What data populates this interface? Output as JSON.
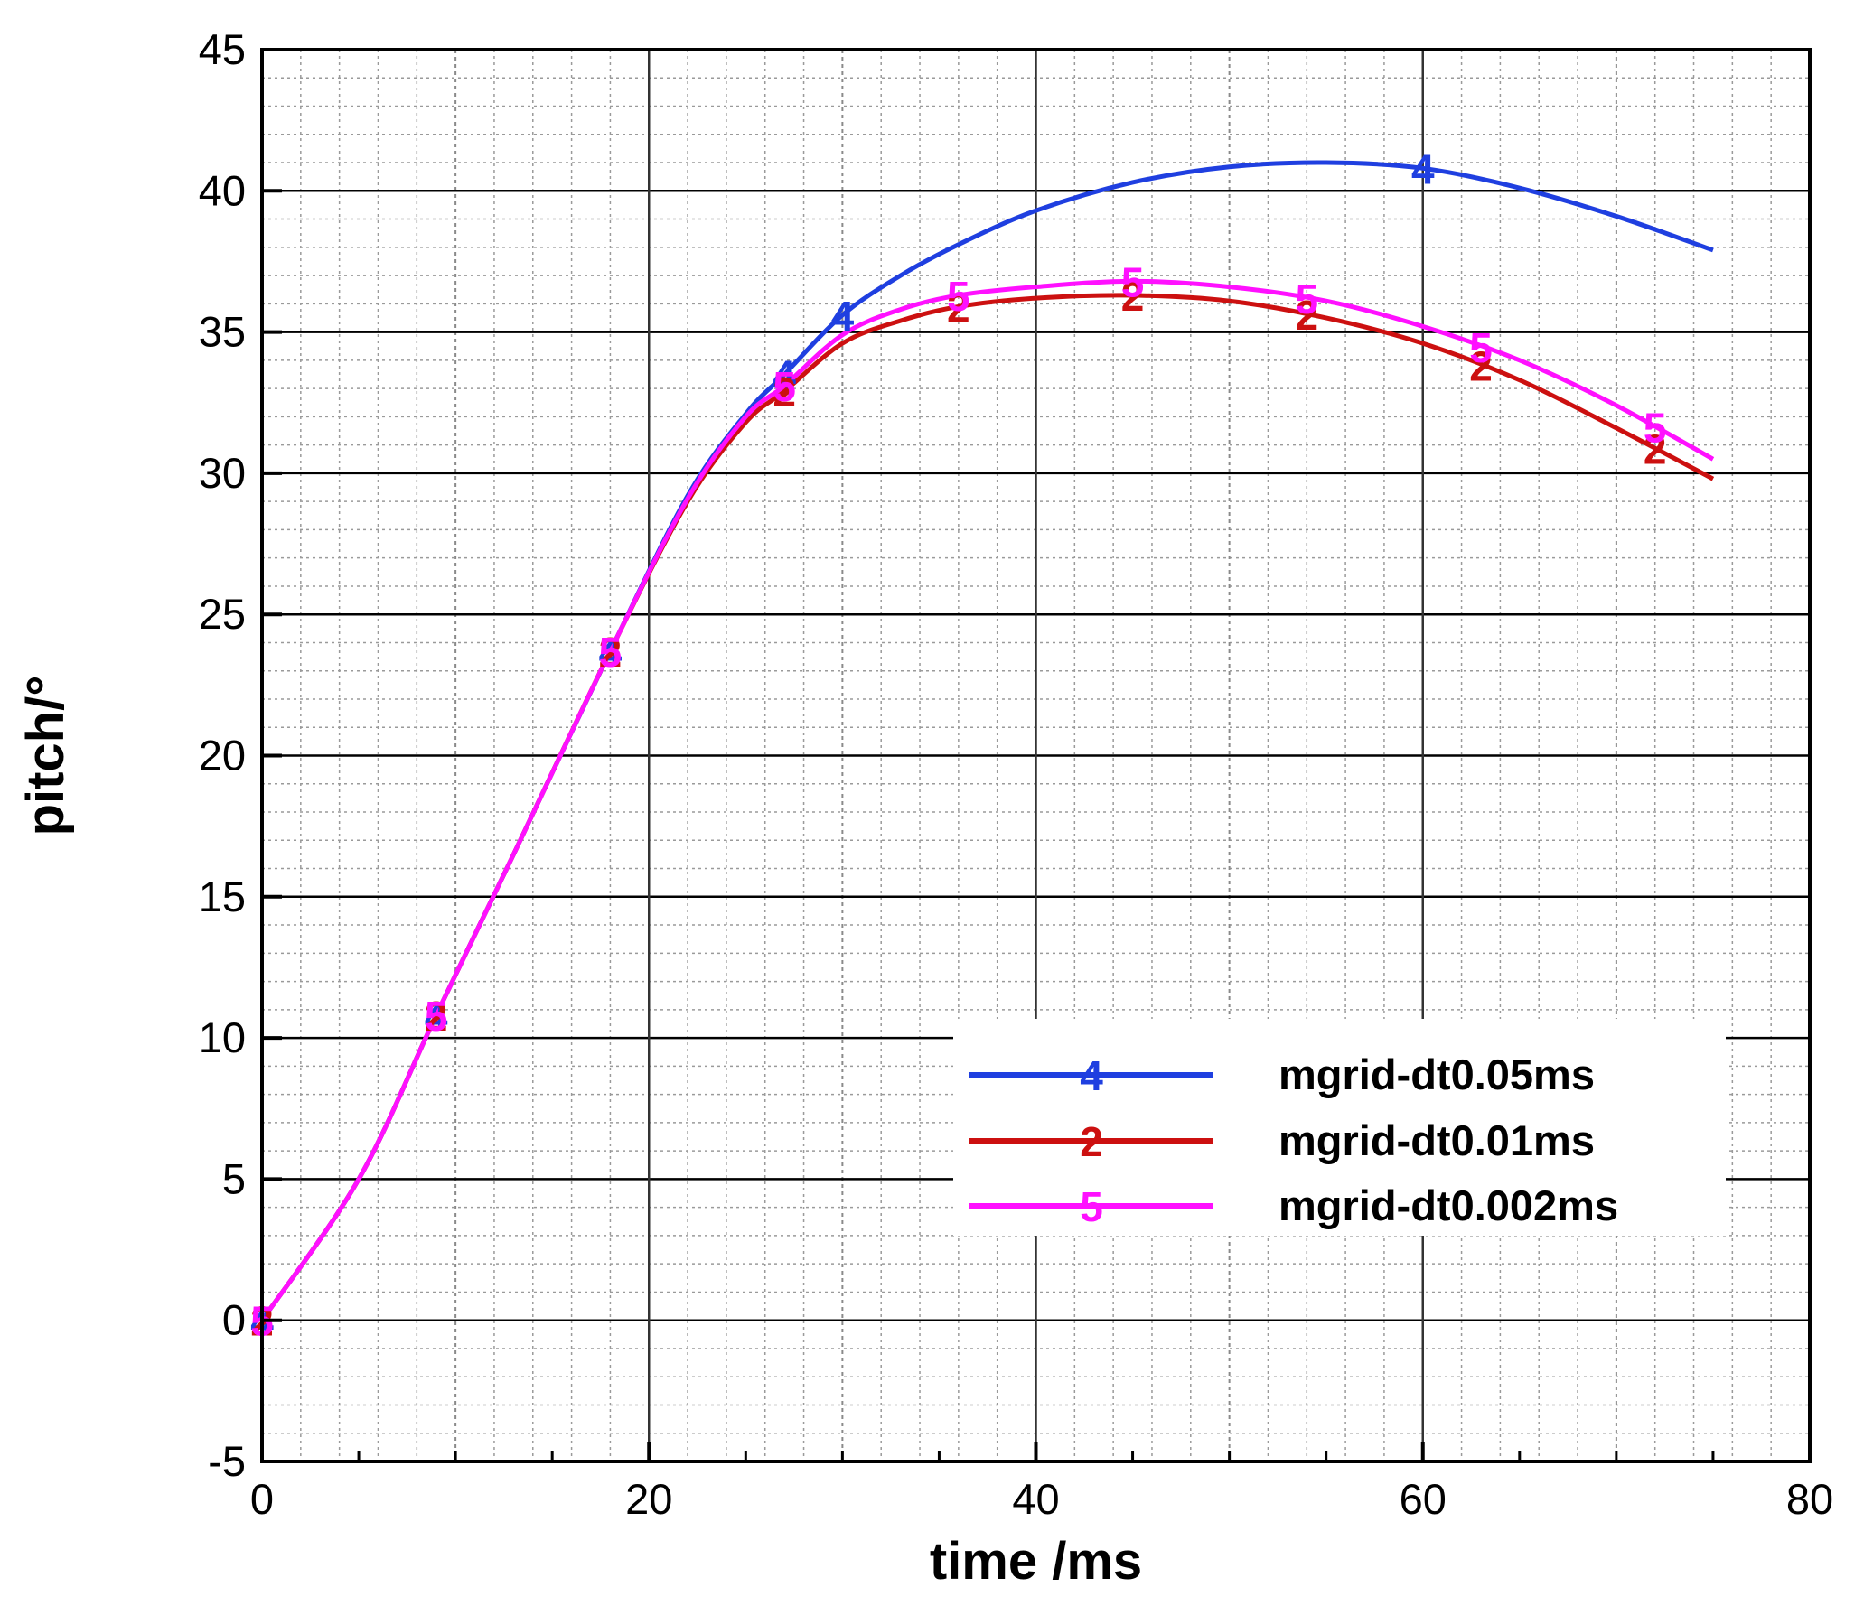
{
  "chart_data": {
    "type": "line",
    "xlabel": "time /ms",
    "ylabel": "pitch/°",
    "xlim": [
      0,
      80
    ],
    "ylim": [
      -5,
      45
    ],
    "xticks": [
      0,
      20,
      40,
      60,
      80
    ],
    "yticks": [
      -5,
      0,
      5,
      10,
      15,
      20,
      25,
      30,
      35,
      40,
      45
    ],
    "grid": true,
    "legend_position": "lower-right",
    "series": [
      {
        "name": "mgrid-dt0.05ms",
        "marker": "4",
        "color": "#1f3fe0",
        "x": [
          0,
          5,
          9,
          13,
          18,
          22,
          25,
          27,
          30,
          33,
          36,
          40,
          45,
          50,
          55,
          60,
          65,
          70,
          75
        ],
        "y": [
          0,
          5,
          10.8,
          16.5,
          23.7,
          29.2,
          32.1,
          33.5,
          35.6,
          37.0,
          38.1,
          39.3,
          40.3,
          40.85,
          41.0,
          40.8,
          40.1,
          39.1,
          37.9
        ],
        "marker_x": [
          0,
          9,
          18,
          27,
          30,
          60
        ]
      },
      {
        "name": "mgrid-dt0.01ms",
        "marker": "2",
        "color": "#cc1010",
        "x": [
          0,
          5,
          9,
          13,
          18,
          22,
          25,
          27,
          30,
          33,
          36,
          40,
          45,
          50,
          55,
          60,
          65,
          70,
          75
        ],
        "y": [
          0,
          5,
          10.8,
          16.5,
          23.7,
          29.0,
          31.8,
          32.9,
          34.6,
          35.4,
          35.9,
          36.2,
          36.3,
          36.1,
          35.5,
          34.6,
          33.3,
          31.6,
          29.8
        ],
        "marker_x": [
          0,
          9,
          18,
          27,
          36,
          45,
          54,
          63,
          72
        ]
      },
      {
        "name": "mgrid-dt0.002ms",
        "marker": "5",
        "color": "#ff10ff",
        "x": [
          0,
          5,
          9,
          13,
          18,
          22,
          25,
          27,
          30,
          33,
          36,
          40,
          45,
          50,
          55,
          60,
          65,
          70,
          75
        ],
        "y": [
          0,
          5,
          10.8,
          16.5,
          23.7,
          29.1,
          32.0,
          33.1,
          34.9,
          35.8,
          36.3,
          36.6,
          36.8,
          36.6,
          36.1,
          35.2,
          34.0,
          32.4,
          30.5
        ],
        "marker_x": [
          0,
          9,
          18,
          27,
          36,
          45,
          54,
          63,
          72
        ]
      }
    ]
  }
}
